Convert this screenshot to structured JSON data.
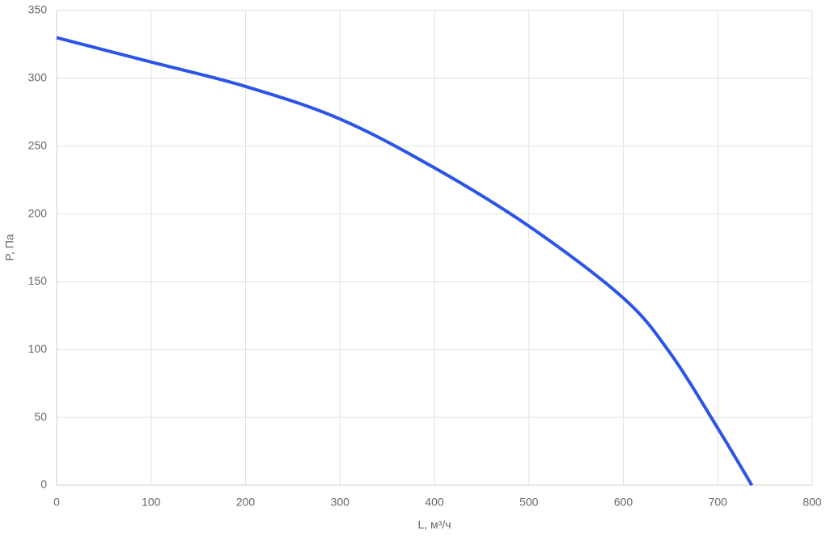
{
  "chart_data": {
    "type": "line",
    "x_label": "L, м³/ч",
    "y_label": "P, Па",
    "x": [
      0,
      100,
      200,
      300,
      400,
      500,
      600,
      650,
      700,
      736
    ],
    "series": [
      {
        "color": "#2b55e8",
        "values": [
          330,
          312,
          294,
          270,
          234,
          191,
          138,
          97,
          42,
          0
        ]
      }
    ],
    "xlim": [
      0,
      800
    ],
    "xticks": [
      0,
      100,
      200,
      300,
      400,
      500,
      600,
      700,
      800
    ],
    "ylim": [
      0,
      350
    ],
    "yticks": [
      0,
      50,
      100,
      150,
      200,
      250,
      300,
      350
    ],
    "grid": true
  }
}
